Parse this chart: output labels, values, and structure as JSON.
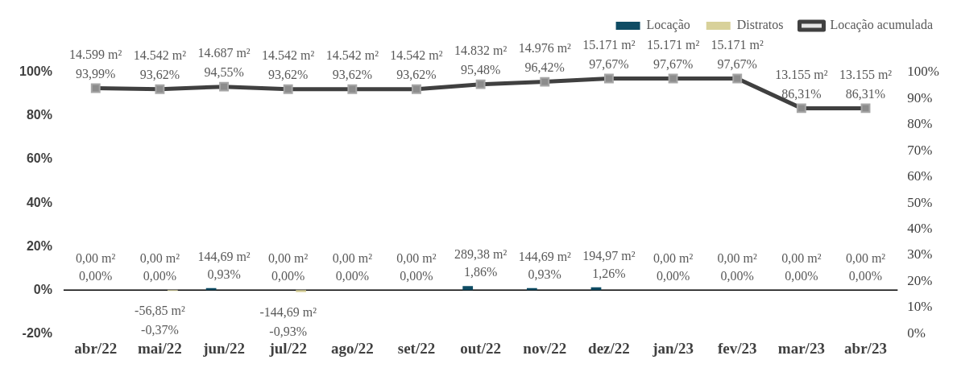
{
  "chart_data": {
    "type": "bar",
    "categories": [
      "abr/22",
      "mai/22",
      "jun/22",
      "jul/22",
      "ago/22",
      "set/22",
      "out/22",
      "nov/22",
      "dez/22",
      "jan/23",
      "fev/23",
      "mar/23",
      "abr/23"
    ],
    "series": [
      {
        "name": "Locação",
        "color": "#0f4c64",
        "values": [
          0,
          0,
          0.93,
          0,
          0,
          0,
          1.86,
          0.93,
          1.26,
          0,
          0,
          0,
          0
        ],
        "value_labels": [
          "0,00 m²\n0,00%",
          "0,00 m²\n0,00%",
          "144,69 m²\n0,93%",
          "0,00 m²\n0,00%",
          "0,00 m²\n0,00%",
          "0,00 m²\n0,00%",
          "289,38 m²\n1,86%",
          "144,69 m²\n0,93%",
          "194,97 m²\n1,26%",
          "0,00 m²\n0,00%",
          "0,00 m²\n0,00%",
          "0,00 m²\n0,00%",
          "0,00 m²\n0,00%"
        ]
      },
      {
        "name": "Distratos",
        "color": "#d8d19a",
        "values": [
          0,
          -0.37,
          0,
          -0.93,
          0,
          0,
          0,
          0,
          0,
          0,
          0,
          0,
          0
        ],
        "value_labels": [
          null,
          "-56,85 m²\n-0,37%",
          null,
          "-144,69 m²\n-0,93%",
          null,
          null,
          null,
          null,
          null,
          null,
          null,
          null,
          null
        ]
      },
      {
        "name": "Locação acumulada",
        "type": "line",
        "axis": "y2",
        "color": "#404040",
        "values": [
          93.99,
          93.62,
          94.55,
          93.62,
          93.62,
          93.62,
          95.48,
          96.42,
          97.67,
          97.67,
          97.67,
          86.31,
          86.31
        ],
        "value_labels": [
          "14.599 m²\n93,99%",
          "14.542 m²\n93,62%",
          "14.687 m²\n94,55%",
          "14.542 m²\n93,62%",
          "14.542 m²\n93,62%",
          "14.542 m²\n93,62%",
          "14.832 m²\n95,48%",
          "14.976 m²\n96,42%",
          "15.171 m²\n97,67%",
          "15.171 m²\n97,67%",
          "15.171 m²\n97,67%",
          "13.155 m²\n86,31%",
          "13.155 m²\n86,31%"
        ]
      }
    ],
    "ylim": [
      -20,
      100
    ],
    "yticks": [
      {
        "value": -20,
        "label": "-20%"
      },
      {
        "value": 0,
        "label": "0%"
      },
      {
        "value": 20,
        "label": "20%"
      },
      {
        "value": 40,
        "label": "40%"
      },
      {
        "value": 60,
        "label": "60%"
      },
      {
        "value": 80,
        "label": "80%"
      },
      {
        "value": 100,
        "label": "100%"
      }
    ],
    "y2lim": [
      0,
      100
    ],
    "y2ticks": [
      {
        "value": 0,
        "label": "0%"
      },
      {
        "value": 10,
        "label": "10%"
      },
      {
        "value": 20,
        "label": "20%"
      },
      {
        "value": 30,
        "label": "30%"
      },
      {
        "value": 40,
        "label": "40%"
      },
      {
        "value": 50,
        "label": "50%"
      },
      {
        "value": 60,
        "label": "60%"
      },
      {
        "value": 70,
        "label": "70%"
      },
      {
        "value": 80,
        "label": "80%"
      },
      {
        "value": 90,
        "label": "90%"
      },
      {
        "value": 100,
        "label": "100%"
      }
    ],
    "ref_lines": [
      {
        "axis": "y",
        "value": 0,
        "color": "#000000"
      }
    ],
    "marker": "square",
    "legend": "top right",
    "grid": false
  }
}
